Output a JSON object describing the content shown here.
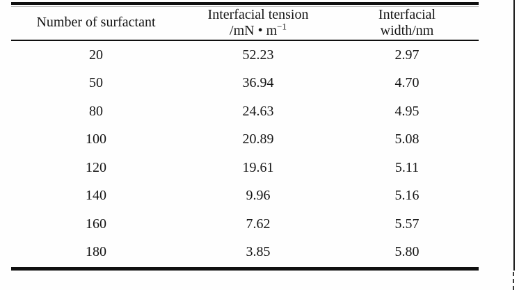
{
  "table": {
    "header": {
      "col1": "Number of surfactant",
      "col2_line1": "Interfacial tension",
      "col2_line2_base": "/mN • m",
      "col2_line2_sup": "−1",
      "col3_line1": "Interfacial",
      "col3_line2": "width/nm"
    },
    "rows": [
      {
        "surfactant": "20",
        "tension": "52.23",
        "width": "2.97"
      },
      {
        "surfactant": "50",
        "tension": "36.94",
        "width": "4.70"
      },
      {
        "surfactant": "80",
        "tension": "24.63",
        "width": "4.95"
      },
      {
        "surfactant": "100",
        "tension": "20.89",
        "width": "5.08"
      },
      {
        "surfactant": "120",
        "tension": "19.61",
        "width": "5.11"
      },
      {
        "surfactant": "140",
        "tension": "9.96",
        "width": "5.16"
      },
      {
        "surfactant": "160",
        "tension": "7.62",
        "width": "5.57"
      },
      {
        "surfactant": "180",
        "tension": "3.85",
        "width": "5.80"
      }
    ]
  },
  "chart_data": {
    "type": "table",
    "columns": [
      "Number of surfactant",
      "Interfacial tension /mN·m⁻¹",
      "Interfacial width/nm"
    ],
    "rows": [
      [
        20,
        52.23,
        2.97
      ],
      [
        50,
        36.94,
        4.7
      ],
      [
        80,
        24.63,
        4.95
      ],
      [
        100,
        20.89,
        5.08
      ],
      [
        120,
        19.61,
        5.11
      ],
      [
        140,
        9.96,
        5.16
      ],
      [
        160,
        7.62,
        5.57
      ],
      [
        180,
        3.85,
        5.8
      ]
    ]
  },
  "colors": {
    "rule": "#101010",
    "text": "#151515",
    "background": "#fefefe"
  }
}
